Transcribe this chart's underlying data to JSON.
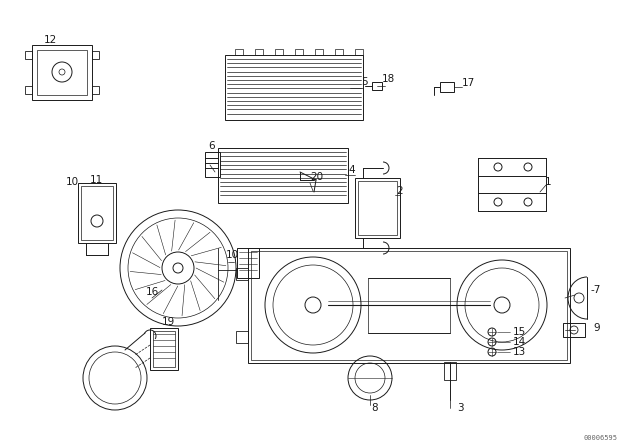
{
  "background_color": "#ffffff",
  "line_color": "#1a1a1a",
  "watermark": "00006595",
  "fig_w": 6.4,
  "fig_h": 4.48,
  "dpi": 100,
  "lw": 0.7
}
